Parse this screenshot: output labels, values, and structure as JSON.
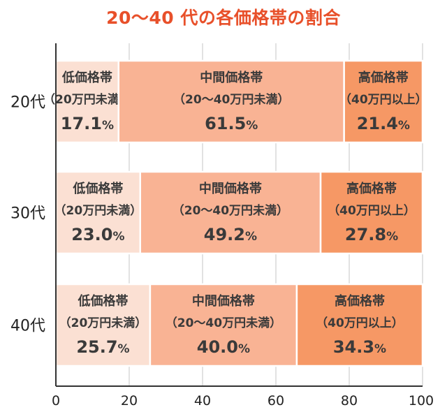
{
  "title": "20～40 代の各価格帯の割合",
  "chart_data": {
    "type": "bar",
    "orientation": "horizontal",
    "stacked": true,
    "categories": [
      "20代",
      "30代",
      "40代"
    ],
    "series": [
      {
        "name": "低価格帯",
        "sub": "（20万円未満）",
        "values": [
          17.1,
          23.0,
          25.7
        ],
        "color": "#fbe0d3"
      },
      {
        "name": "中間価格帯",
        "sub": "（20～40万円未満）",
        "values": [
          61.5,
          49.2,
          40.0
        ],
        "color": "#f9b394"
      },
      {
        "name": "高価格帯",
        "sub": "（40万円以上）",
        "values": [
          21.4,
          27.8,
          34.3
        ],
        "color": "#f69865"
      }
    ],
    "value_suffix": "%",
    "xlim": [
      0,
      100
    ],
    "xticks": [
      0,
      20,
      40,
      60,
      80,
      100
    ],
    "grid": true
  }
}
